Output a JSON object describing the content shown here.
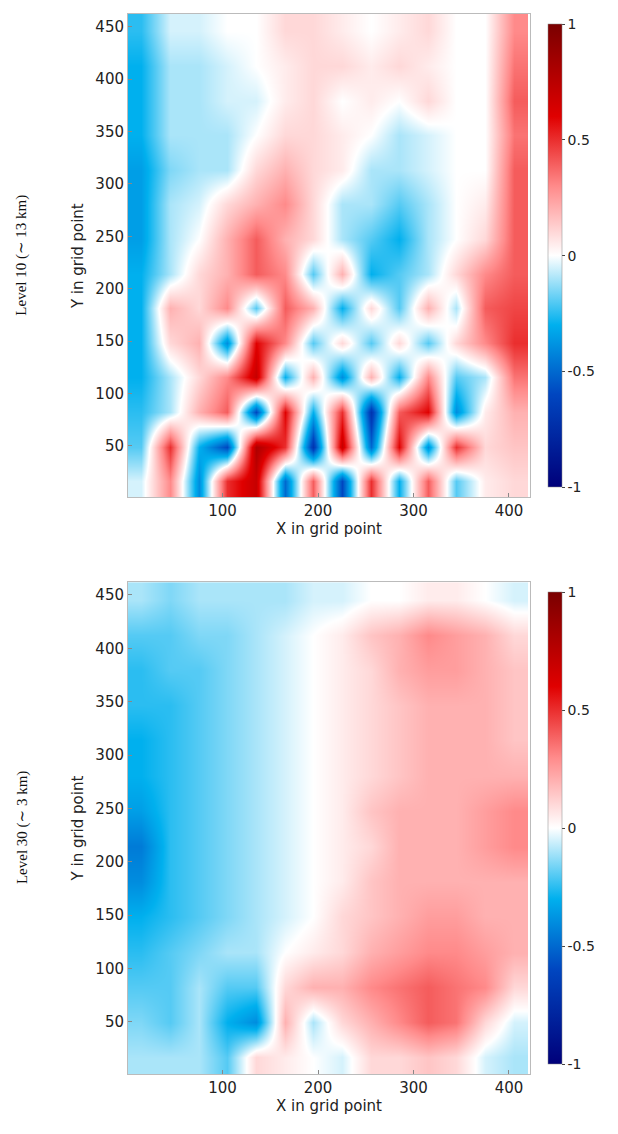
{
  "chart_data": [
    {
      "type": "heatmap",
      "panel_label": "Level 10 (∼ 13 km)",
      "xlabel": "X in grid point",
      "ylabel": "Y in grid point",
      "x": [
        15,
        45,
        75,
        105,
        135,
        165,
        195,
        225,
        255,
        285,
        315,
        345,
        375,
        405
      ],
      "y": [
        16.5,
        49.5,
        82.5,
        115.5,
        148.5,
        181.5,
        214.5,
        247.5,
        280.5,
        313.5,
        346.5,
        379.5,
        412.5,
        445.5
      ],
      "cells": [
        [
          -0.05,
          0.3,
          -0.4,
          0.5,
          0.7,
          -0.5,
          0.4,
          -0.6,
          0.5,
          -0.3,
          0.4,
          -0.2,
          0.05,
          0.1
        ],
        [
          -0.2,
          0.5,
          -0.3,
          -0.6,
          0.8,
          0.5,
          -0.7,
          0.7,
          -0.5,
          0.6,
          -0.4,
          0.5,
          0.1,
          0.15
        ],
        [
          -0.25,
          -0.1,
          0.2,
          0.4,
          -0.6,
          0.6,
          -0.3,
          0.5,
          -0.7,
          0.4,
          0.6,
          -0.4,
          0.05,
          0.2
        ],
        [
          -0.3,
          -0.1,
          0.1,
          0.3,
          0.7,
          -0.3,
          0.2,
          -0.4,
          0.2,
          -0.3,
          0.3,
          -0.2,
          -0.1,
          0.35
        ],
        [
          -0.3,
          0.1,
          0.2,
          -0.4,
          0.6,
          0.3,
          -0.2,
          0.1,
          -0.2,
          0.1,
          -0.2,
          0.1,
          0.3,
          0.5
        ],
        [
          -0.3,
          0.2,
          0.1,
          0.3,
          -0.2,
          0.4,
          0.2,
          -0.3,
          0.1,
          -0.2,
          0.2,
          -0.1,
          0.4,
          0.45
        ],
        [
          -0.3,
          -0.1,
          0.1,
          0.2,
          0.4,
          0.3,
          -0.2,
          0.2,
          -0.3,
          -0.2,
          -0.1,
          0.1,
          0.3,
          0.4
        ],
        [
          -0.35,
          -0.1,
          0.0,
          0.2,
          0.4,
          0.2,
          0.1,
          -0.1,
          -0.2,
          -0.3,
          -0.1,
          0.0,
          0.1,
          0.4
        ],
        [
          -0.35,
          -0.1,
          -0.05,
          0.1,
          0.2,
          0.3,
          0.1,
          -0.1,
          -0.1,
          -0.2,
          -0.1,
          0.0,
          0.05,
          0.4
        ],
        [
          -0.35,
          -0.15,
          -0.1,
          -0.1,
          0.1,
          0.2,
          0.1,
          0.05,
          -0.1,
          -0.1,
          -0.05,
          0.0,
          0.0,
          0.4
        ],
        [
          -0.3,
          -0.1,
          -0.1,
          -0.1,
          0.0,
          0.1,
          0.1,
          0.05,
          0.0,
          -0.1,
          -0.05,
          0.0,
          0.0,
          0.35
        ],
        [
          -0.3,
          -0.1,
          -0.1,
          -0.05,
          -0.05,
          0.05,
          0.1,
          0.0,
          0.05,
          0.0,
          0.1,
          0.0,
          0.0,
          0.4
        ],
        [
          -0.3,
          -0.1,
          -0.1,
          -0.05,
          0.0,
          0.05,
          0.1,
          0.1,
          0.05,
          0.1,
          0.05,
          0.0,
          0.0,
          0.35
        ],
        [
          -0.25,
          -0.05,
          -0.05,
          0.0,
          0.0,
          0.1,
          0.1,
          0.05,
          0.0,
          0.05,
          0.1,
          0.0,
          0.0,
          0.3
        ]
      ],
      "xlim": [
        1,
        422
      ],
      "ylim": [
        1,
        462
      ],
      "xticks": [
        100,
        200,
        300,
        400
      ],
      "yticks": [
        50,
        100,
        150,
        200,
        250,
        300,
        350,
        400,
        450
      ],
      "colorbar_range": [
        -1,
        1
      ],
      "colorbar_ticks": [
        -1,
        -0.5,
        0,
        0.5,
        1
      ]
    },
    {
      "type": "heatmap",
      "panel_label": "Level 30 (∼ 3 km)",
      "xlabel": "X in grid point",
      "ylabel": "Y in grid point",
      "x": [
        15,
        45,
        75,
        105,
        135,
        165,
        195,
        225,
        255,
        285,
        315,
        345,
        375,
        405
      ],
      "y": [
        16.5,
        49.5,
        82.5,
        115.5,
        148.5,
        181.5,
        214.5,
        247.5,
        280.5,
        313.5,
        346.5,
        379.5,
        412.5,
        445.5
      ],
      "cells": [
        [
          -0.1,
          -0.1,
          -0.1,
          -0.2,
          0.1,
          0.05,
          0.0,
          -0.05,
          0.1,
          0.1,
          0.15,
          0.1,
          -0.05,
          -0.1
        ],
        [
          -0.15,
          -0.2,
          -0.1,
          -0.3,
          -0.4,
          0.2,
          -0.1,
          0.1,
          0.2,
          0.3,
          0.4,
          0.35,
          0.1,
          -0.05
        ],
        [
          -0.2,
          -0.2,
          -0.1,
          -0.2,
          -0.2,
          0.1,
          0.2,
          0.2,
          0.3,
          0.35,
          0.4,
          0.35,
          0.3,
          0.1
        ],
        [
          -0.25,
          -0.2,
          -0.15,
          -0.1,
          -0.1,
          0.0,
          0.05,
          0.1,
          0.2,
          0.25,
          0.3,
          0.3,
          0.25,
          0.2
        ],
        [
          -0.3,
          -0.25,
          -0.2,
          -0.15,
          -0.1,
          -0.05,
          0.0,
          0.1,
          0.15,
          0.2,
          0.25,
          0.25,
          0.2,
          0.2
        ],
        [
          -0.4,
          -0.25,
          -0.2,
          -0.15,
          -0.1,
          -0.05,
          0.0,
          0.05,
          0.15,
          0.2,
          0.2,
          0.2,
          0.2,
          0.2
        ],
        [
          -0.45,
          -0.25,
          -0.2,
          -0.15,
          -0.1,
          -0.05,
          0.0,
          0.05,
          0.1,
          0.2,
          0.2,
          0.2,
          0.25,
          0.3
        ],
        [
          -0.35,
          -0.25,
          -0.2,
          -0.15,
          -0.1,
          -0.05,
          0.0,
          0.05,
          0.15,
          0.2,
          0.2,
          0.2,
          0.25,
          0.3
        ],
        [
          -0.3,
          -0.25,
          -0.2,
          -0.15,
          -0.1,
          -0.05,
          0.0,
          0.05,
          0.1,
          0.15,
          0.2,
          0.2,
          0.2,
          0.2
        ],
        [
          -0.3,
          -0.25,
          -0.2,
          -0.15,
          -0.1,
          -0.05,
          0.0,
          0.05,
          0.1,
          0.15,
          0.2,
          0.2,
          0.2,
          0.15
        ],
        [
          -0.25,
          -0.25,
          -0.2,
          -0.15,
          -0.1,
          -0.05,
          0.0,
          0.05,
          0.1,
          0.15,
          0.2,
          0.2,
          0.2,
          0.15
        ],
        [
          -0.25,
          -0.2,
          -0.2,
          -0.15,
          -0.1,
          -0.05,
          0.0,
          0.05,
          0.1,
          0.2,
          0.25,
          0.25,
          0.2,
          0.15
        ],
        [
          -0.2,
          -0.2,
          -0.15,
          -0.15,
          -0.1,
          -0.05,
          0.0,
          0.05,
          0.15,
          0.2,
          0.3,
          0.25,
          0.2,
          0.1
        ],
        [
          -0.1,
          -0.15,
          -0.1,
          -0.1,
          -0.1,
          -0.1,
          -0.05,
          -0.05,
          0.0,
          0.0,
          0.05,
          0.05,
          0.0,
          -0.05
        ]
      ],
      "xlim": [
        1,
        422
      ],
      "ylim": [
        1,
        462
      ],
      "xticks": [
        100,
        200,
        300,
        400
      ],
      "yticks": [
        50,
        100,
        150,
        200,
        250,
        300,
        350,
        400,
        450
      ],
      "colorbar_range": [
        -1,
        1
      ],
      "colorbar_ticks": [
        -1,
        -0.5,
        0,
        0.5,
        1
      ]
    }
  ]
}
